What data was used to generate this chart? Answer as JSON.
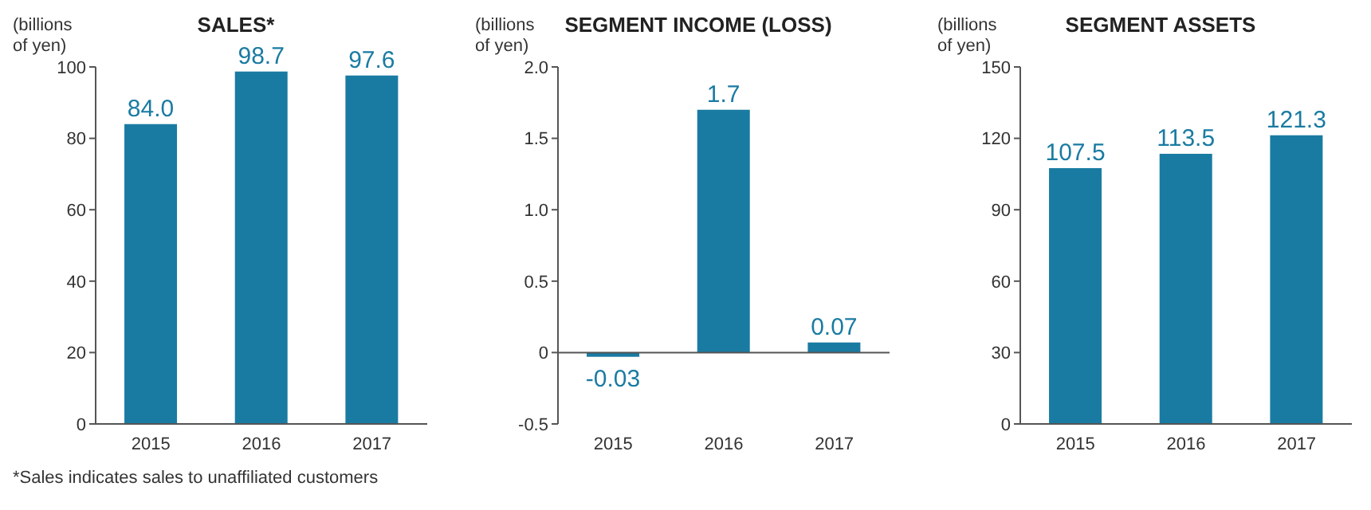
{
  "chart_data": [
    {
      "type": "bar",
      "title": "SALES*",
      "ylabel": "(billions of yen)",
      "categories": [
        "2015",
        "2016",
        "2017"
      ],
      "values": [
        84.0,
        98.7,
        97.6
      ],
      "color": "#1a7ba2",
      "value_labels": [
        "84.0",
        "98.7",
        "97.6"
      ],
      "ylim": [
        0,
        100
      ],
      "yticks": [
        0,
        20,
        40,
        60,
        80,
        100
      ],
      "annotations": [
        "*Sales indicates sales to unaffiliated customers"
      ]
    },
    {
      "type": "bar",
      "title": "SEGMENT INCOME (LOSS)",
      "ylabel": "(billions of yen)",
      "categories": [
        "2015",
        "2016",
        "2017"
      ],
      "values": [
        -0.03,
        1.7,
        0.07
      ],
      "color": "#1a7ba2",
      "value_labels": [
        "-0.03",
        "1.7",
        "0.07"
      ],
      "ylim": [
        -0.5,
        2
      ],
      "yticks": [
        -0.5,
        0,
        0.5,
        {
          "value": 1,
          "label": "1.0"
        },
        1.5,
        {
          "value": 2,
          "label": "2.0"
        }
      ]
    },
    {
      "type": "bar",
      "title": "SEGMENT ASSETS",
      "ylabel": "(billions of yen)",
      "categories": [
        "2015",
        "2016",
        "2017"
      ],
      "values": [
        107.5,
        113.5,
        121.3
      ],
      "color": "#1a7ba2",
      "value_labels": [
        "107.5",
        "113.5",
        "121.3"
      ],
      "ylim": [
        0,
        150
      ],
      "yticks": [
        0,
        30,
        60,
        90,
        120,
        150
      ]
    }
  ]
}
